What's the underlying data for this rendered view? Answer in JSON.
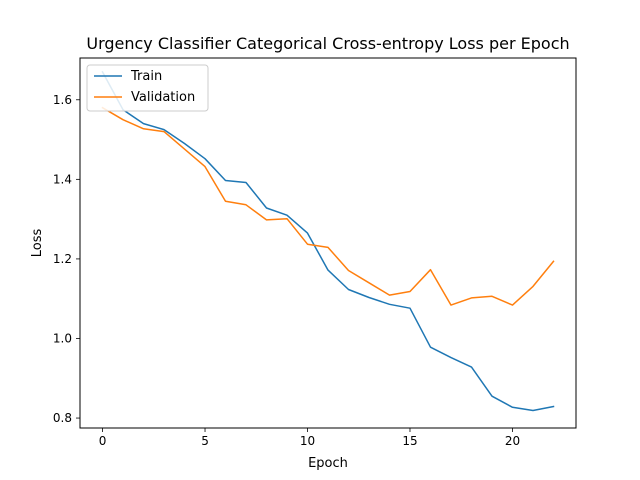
{
  "chart_data": {
    "type": "line",
    "title": "Urgency Classifier Categorical Cross-entropy Loss per Epoch",
    "xlabel": "Epoch",
    "ylabel": "Loss",
    "xlim": [
      -1.1,
      23.1
    ],
    "ylim": [
      0.775,
      1.705
    ],
    "xticks": [
      0,
      5,
      10,
      15,
      20
    ],
    "yticks": [
      0.8,
      1.0,
      1.2,
      1.4,
      1.6
    ],
    "ytick_labels": [
      "0.8",
      "1.0",
      "1.2",
      "1.4",
      "1.6"
    ],
    "grid": false,
    "legend_position": "upper-left",
    "x": [
      0,
      1,
      2,
      3,
      4,
      5,
      6,
      7,
      8,
      9,
      10,
      11,
      12,
      13,
      14,
      15,
      16,
      17,
      18,
      19,
      20,
      21,
      22
    ],
    "series": [
      {
        "name": "Train",
        "color": "#1f77b4",
        "values": [
          1.67,
          1.575,
          1.54,
          1.525,
          1.49,
          1.452,
          1.397,
          1.392,
          1.328,
          1.31,
          1.265,
          1.172,
          1.123,
          1.103,
          1.086,
          1.076,
          0.978,
          0.952,
          0.928,
          0.855,
          0.827,
          0.819,
          0.829
        ]
      },
      {
        "name": "Validation",
        "color": "#ff7f0e",
        "values": [
          1.58,
          1.55,
          1.527,
          1.52,
          1.476,
          1.432,
          1.345,
          1.336,
          1.298,
          1.301,
          1.237,
          1.229,
          1.171,
          1.14,
          1.109,
          1.118,
          1.173,
          1.084,
          1.102,
          1.106,
          1.084,
          1.131,
          1.194
        ]
      }
    ]
  }
}
